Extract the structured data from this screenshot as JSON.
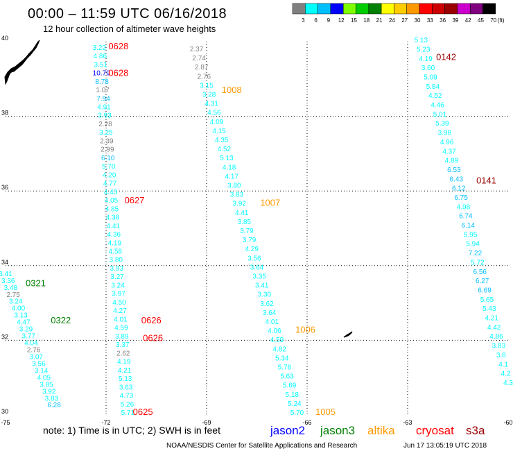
{
  "header": {
    "title": "00:00 – 11:59 UTC 06/16/2018",
    "subtitle": "12 hour collection of altimeter wave heights"
  },
  "footer": {
    "note": "note: 1) Time is in UTC; 2) SWH is in feet",
    "credit": "NOAA/NESDIS Center for Satellite Applications and Research",
    "timestamp": "Jun 17 13:05:19 UTC 2018"
  },
  "chart_data": {
    "type": "scatter",
    "x_ticks": [
      "-75",
      "-72",
      "-69",
      "-66",
      "-63",
      "-60"
    ],
    "y_ticks": [
      "30",
      "32",
      "34",
      "36",
      "38",
      "40"
    ],
    "xlim": [
      -75,
      -60
    ],
    "ylim": [
      30,
      40
    ],
    "grid": true,
    "color_scale": {
      "unit": "(ft)",
      "labels": [
        "3",
        "6",
        "9",
        "12",
        "15",
        "18",
        "21",
        "24",
        "27",
        "30",
        "33",
        "36",
        "39",
        "42",
        "45",
        "70"
      ],
      "colors": [
        "#808080",
        "#00ffff",
        "#00bfff",
        "#0000ff",
        "#80ff00",
        "#00cc00",
        "#008000",
        "#ffff00",
        "#ffcc00",
        "#ff9900",
        "#ff0000",
        "#cc0000",
        "#990000",
        "#cc00cc",
        "#800080",
        "#000000"
      ]
    },
    "legend": [
      {
        "name": "jason2",
        "color": "#0000ff"
      },
      {
        "name": "jason3",
        "color": "#008000"
      },
      {
        "name": "altika",
        "color": "#ff9900"
      },
      {
        "name": "cryosat",
        "color": "#ff0000"
      },
      {
        "name": "s3a",
        "color": "#990000"
      }
    ],
    "tracks": [
      {
        "values": [
          "3.22",
          "4.86",
          "3.51",
          "10.79",
          "8.78",
          "1.07",
          "7.94",
          "4.91",
          "3.93",
          "2.28",
          "3.25",
          "2.39",
          "2.99",
          "6.10",
          "5.70",
          "4.20",
          "4.77",
          "4.43",
          "4.05",
          "4.85",
          "4.38",
          "4.41",
          "4.36",
          "4.19",
          "4.58",
          "3.80",
          "3.93",
          "3.27",
          "3.24",
          "3.97",
          "4.50",
          "4.27",
          "4.01",
          "4.59",
          "3.89",
          "3.37",
          "2.62",
          "4.19",
          "4.21",
          "5.13",
          "3.63",
          "4.73",
          "5.26",
          "5.71"
        ],
        "lon_start": -72.2,
        "lat_start": 39.78,
        "lon_end": -71.35,
        "lat_end": 30.0
      },
      {
        "values": [
          "2.37",
          "2.74",
          "2.87",
          "2.76",
          "3.15",
          "3.28",
          "4.31",
          "4.56",
          "4.09",
          "4.15",
          "4.35",
          "4.52",
          "5.13",
          "4.18",
          "4.17",
          "3.80",
          "3.83",
          "3.92",
          "4.41",
          "3.85",
          "3.79",
          "3.79",
          "4.29",
          "3.56",
          "3.64",
          "3.35",
          "3.41",
          "3.30",
          "3.62",
          "3.64",
          "4.01",
          "4.06",
          "4.59",
          "4.82",
          "5.34",
          "5.78",
          "5.63",
          "5.69",
          "5.18",
          "5.24",
          "5.70"
        ],
        "lon_start": -69.3,
        "lat_start": 39.74,
        "lon_end": -66.3,
        "lat_end": 30.0
      },
      {
        "values": [
          "5.13",
          "5.23",
          "4.19",
          "3.60",
          "5.09",
          "5.84",
          "4.52",
          "4.46",
          "5.01",
          "5.39",
          "3.98",
          "4.96",
          "4.37",
          "4.89",
          "6.53",
          "6.43",
          "6.12",
          "6.75",
          "4.98",
          "6.74",
          "6.14",
          "5.95",
          "5.94",
          "7.22",
          "5.72",
          "6.56",
          "6.27",
          "6.69",
          "5.65",
          "5.43",
          "4.21",
          "4.42",
          "4.86",
          "3.83",
          "3.8",
          "4.1",
          "4.2",
          "4.3"
        ],
        "lon_start": -62.6,
        "lat_start": 39.98,
        "lon_end": -60.0,
        "lat_end": 30.8
      },
      {
        "values": [
          "3.41",
          "3.36",
          "3.48",
          "2.75",
          "3.24",
          "4.00",
          "3.13",
          "4.47",
          "3.29",
          "3.77",
          "4.04",
          "2.76",
          "3.07",
          "3.56",
          "3.14",
          "4.05",
          "3.85",
          "3.92",
          "3.83",
          "6.28"
        ],
        "lon_start": -75.0,
        "lat_start": 33.72,
        "lon_end": -73.55,
        "lat_end": 30.2
      }
    ],
    "time_labels": [
      {
        "label": "0628",
        "color": "#ff0000",
        "lon": -71.93,
        "lat": 39.8
      },
      {
        "label": "0628",
        "color": "#ff0000",
        "lon": -71.93,
        "lat": 39.08
      },
      {
        "label": "1008",
        "color": "#ff9900",
        "lon": -68.55,
        "lat": 38.62
      },
      {
        "label": "0142",
        "color": "#990000",
        "lon": -62.15,
        "lat": 39.51
      },
      {
        "label": "0141",
        "color": "#990000",
        "lon": -60.95,
        "lat": 36.2
      },
      {
        "label": "0627",
        "color": "#ff0000",
        "lon": -71.45,
        "lat": 35.67
      },
      {
        "label": "1007",
        "color": "#ff9900",
        "lon": -67.4,
        "lat": 35.6
      },
      {
        "label": "0321",
        "color": "#008000",
        "lon": -74.4,
        "lat": 33.45
      },
      {
        "label": "0322",
        "color": "#008000",
        "lon": -73.65,
        "lat": 32.45
      },
      {
        "label": "0626",
        "color": "#ff0000",
        "lon": -70.95,
        "lat": 32.45
      },
      {
        "label": "0626",
        "color": "#ff0000",
        "lon": -70.9,
        "lat": 31.98
      },
      {
        "label": "1006",
        "color": "#ff9900",
        "lon": -66.35,
        "lat": 32.2
      },
      {
        "label": "1005",
        "color": "#ff9900",
        "lon": -65.75,
        "lat": 30.0
      },
      {
        "label": "0625",
        "color": "#ff0000",
        "lon": -71.2,
        "lat": 30.0
      }
    ]
  }
}
